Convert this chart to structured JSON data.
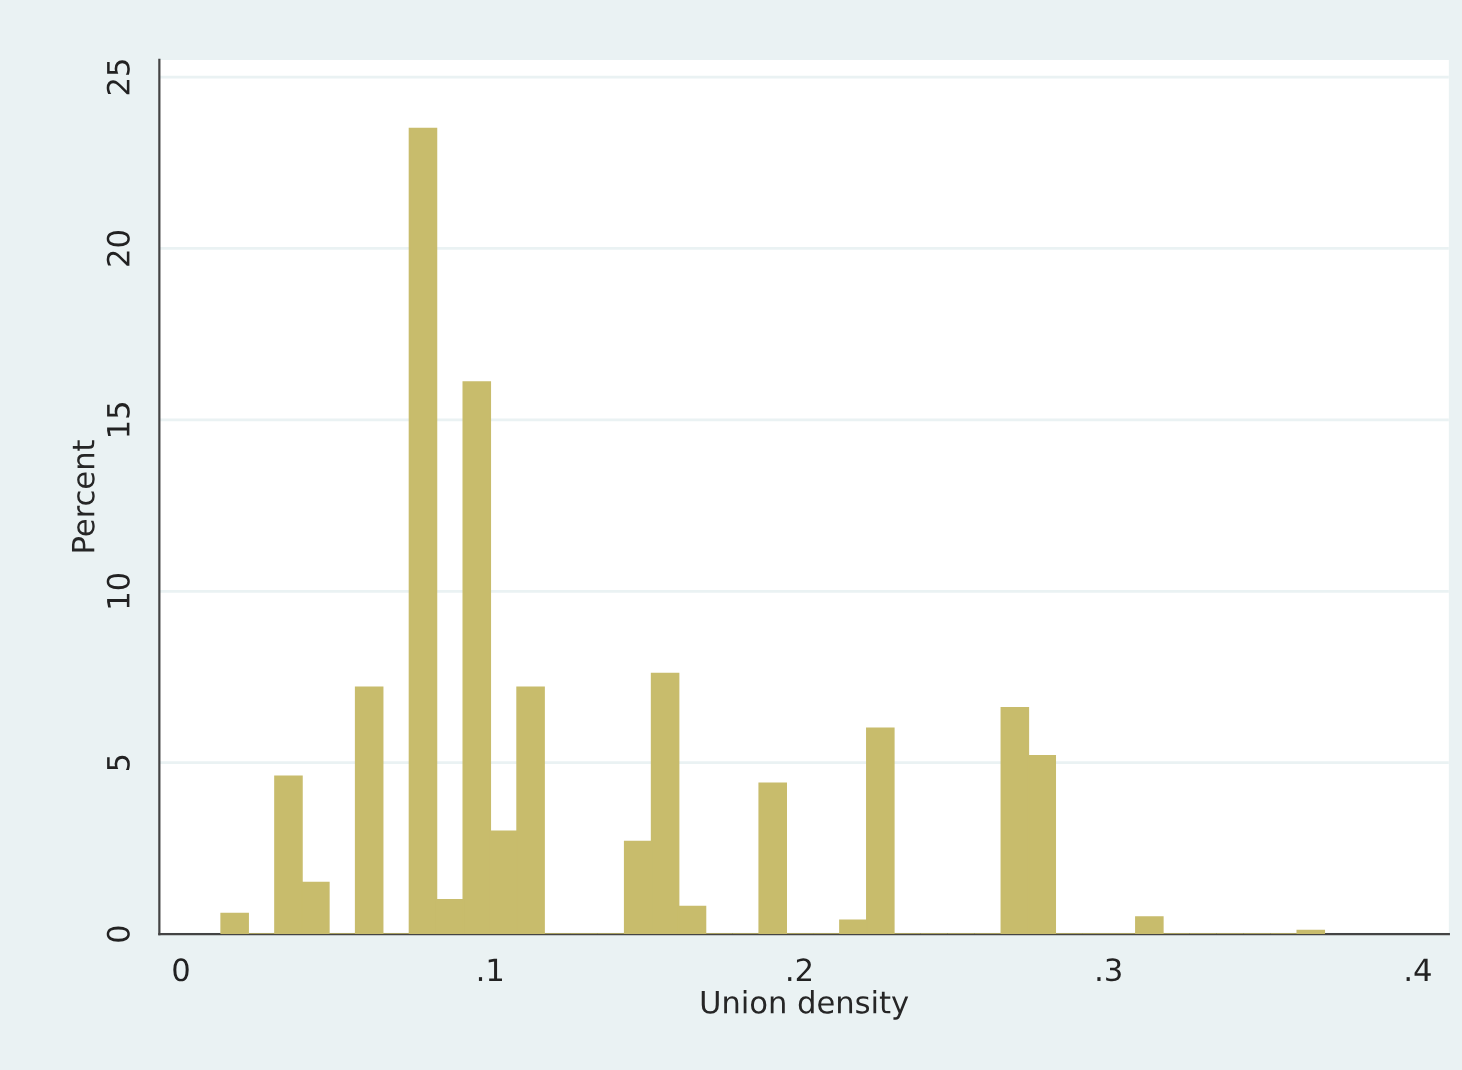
{
  "chart_data": {
    "type": "histogram",
    "xlabel": "Union density",
    "ylabel": "Percent",
    "color": "#c8bc6c",
    "bins": [
      0.013,
      0.0217,
      0.0304,
      0.0391,
      0.0478,
      0.0565,
      0.0652,
      0.0739,
      0.0826,
      0.0913,
      0.1,
      0.1087,
      0.1174,
      0.1261,
      0.1348,
      0.1435,
      0.1522,
      0.1609,
      0.1696,
      0.1783,
      0.187,
      0.1957,
      0.2044,
      0.2131,
      0.2218,
      0.2305,
      0.2392,
      0.2479,
      0.2566,
      0.2653,
      0.274,
      0.2827,
      0.2914,
      0.3001,
      0.3088,
      0.3175,
      0.3262,
      0.3349,
      0.3436,
      0.3523,
      0.361,
      0.3697
    ],
    "values": [
      0.6,
      0,
      4.6,
      1.5,
      0,
      7.2,
      0,
      23.5,
      1.0,
      16.1,
      3.0,
      7.2,
      0,
      0,
      0,
      2.7,
      7.6,
      0.8,
      0,
      0,
      4.4,
      0,
      0,
      0.4,
      6.0,
      0,
      0,
      0,
      0,
      6.6,
      5.2,
      0,
      0,
      0,
      0.5,
      0,
      0,
      0,
      0,
      0,
      0.1
    ],
    "xlim": [
      -0.007,
      0.41
    ],
    "xticks": [
      0,
      {
        "value": 0.1,
        "label": ".1"
      },
      {
        "value": 0.2,
        "label": ".2"
      },
      {
        "value": 0.3,
        "label": ".3"
      },
      {
        "value": 0.4,
        "label": ".4"
      }
    ],
    "ylim": [
      0,
      25.5
    ],
    "yticks": [
      0,
      5,
      10,
      15,
      20,
      25
    ],
    "grid": "y"
  }
}
